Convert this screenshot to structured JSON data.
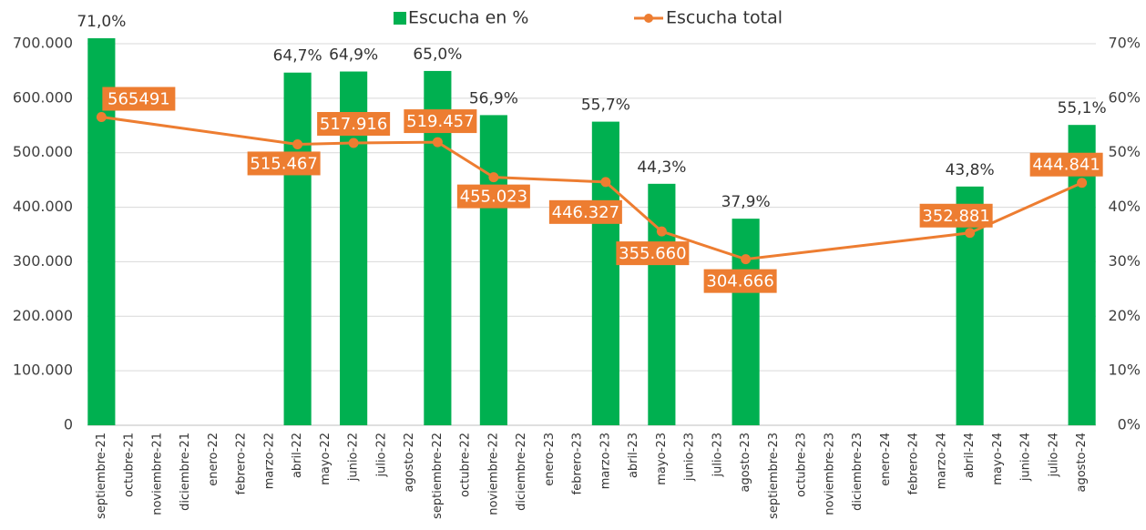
{
  "chart_data": {
    "type": "bar_line",
    "categories": [
      "septiembre-21",
      "octubre-21",
      "noviembre-21",
      "diciembre-21",
      "enero-22",
      "febrero-22",
      "marzo-22",
      "abril-22",
      "mayo-22",
      "junio-22",
      "julio-22",
      "agosto-22",
      "septiembre-22",
      "octubre-22",
      "noviembre-22",
      "diciembre-22",
      "enero-23",
      "febrero-23",
      "marzo-23",
      "abril-23",
      "mayo-23",
      "junio-23",
      "julio-23",
      "agosto-23",
      "septiembre-23",
      "octubre-23",
      "noviembre-23",
      "diciembre-23",
      "enero-24",
      "febrero-24",
      "marzo-24",
      "abril-24",
      "mayo-24",
      "junio-24",
      "julio-24",
      "agosto-24"
    ],
    "series": [
      {
        "name": "Escucha en %",
        "type": "bar",
        "axis": "y2",
        "color": "#00b050",
        "values": [
          71.0,
          null,
          null,
          null,
          null,
          null,
          null,
          64.7,
          null,
          64.9,
          null,
          null,
          65.0,
          null,
          56.9,
          null,
          null,
          null,
          55.7,
          null,
          44.3,
          null,
          null,
          37.9,
          null,
          null,
          null,
          null,
          null,
          null,
          null,
          43.8,
          null,
          null,
          null,
          55.1
        ],
        "value_labels": [
          "71,0%",
          null,
          null,
          null,
          null,
          null,
          null,
          "64,7%",
          null,
          "64,9%",
          null,
          null,
          "65,0%",
          null,
          "56,9%",
          null,
          null,
          null,
          "55,7%",
          null,
          "44,3%",
          null,
          null,
          "37,9%",
          null,
          null,
          null,
          null,
          null,
          null,
          null,
          "43,8%",
          null,
          null,
          null,
          "55,1%"
        ]
      },
      {
        "name": "Escucha total",
        "type": "line",
        "axis": "y",
        "color": "#ed7d31",
        "connect_gaps": true,
        "values": [
          565491,
          null,
          null,
          null,
          null,
          null,
          null,
          515467,
          null,
          517916,
          null,
          null,
          519457,
          null,
          455023,
          null,
          null,
          null,
          446327,
          null,
          355660,
          null,
          null,
          304666,
          null,
          null,
          null,
          null,
          null,
          null,
          null,
          352881,
          null,
          null,
          null,
          444841
        ],
        "value_labels": [
          "565491",
          null,
          null,
          null,
          null,
          null,
          null,
          "515.467",
          null,
          "517.916",
          null,
          null,
          "519.457",
          null,
          "455.023",
          null,
          null,
          null,
          "446.327",
          null,
          "355.660",
          null,
          null,
          "304.666",
          null,
          null,
          null,
          null,
          null,
          null,
          null,
          "352.881",
          null,
          null,
          null,
          "444.841"
        ]
      }
    ],
    "ylim": [
      0,
      700000
    ],
    "yticks": [
      0,
      {
        "value": 100000,
        "label": "100.000"
      },
      {
        "value": 200000,
        "label": "200.000"
      },
      {
        "value": 300000,
        "label": "300.000"
      },
      {
        "value": 400000,
        "label": "400.000"
      },
      {
        "value": 500000,
        "label": "500.000"
      },
      {
        "value": 600000,
        "label": "600.000"
      },
      {
        "value": 700000,
        "label": "700.000"
      }
    ],
    "y2lim": [
      0,
      70
    ],
    "y2ticks": [
      {
        "value": 0,
        "label": "0%"
      },
      {
        "value": 10,
        "label": "10%"
      },
      {
        "value": 20,
        "label": "20%"
      },
      {
        "value": 30,
        "label": "30%"
      },
      {
        "value": 40,
        "label": "40%"
      },
      {
        "value": 50,
        "label": "50%"
      },
      {
        "value": 60,
        "label": "60%"
      },
      {
        "value": 70,
        "label": "70%"
      }
    ],
    "grid": true,
    "legend": "top"
  }
}
